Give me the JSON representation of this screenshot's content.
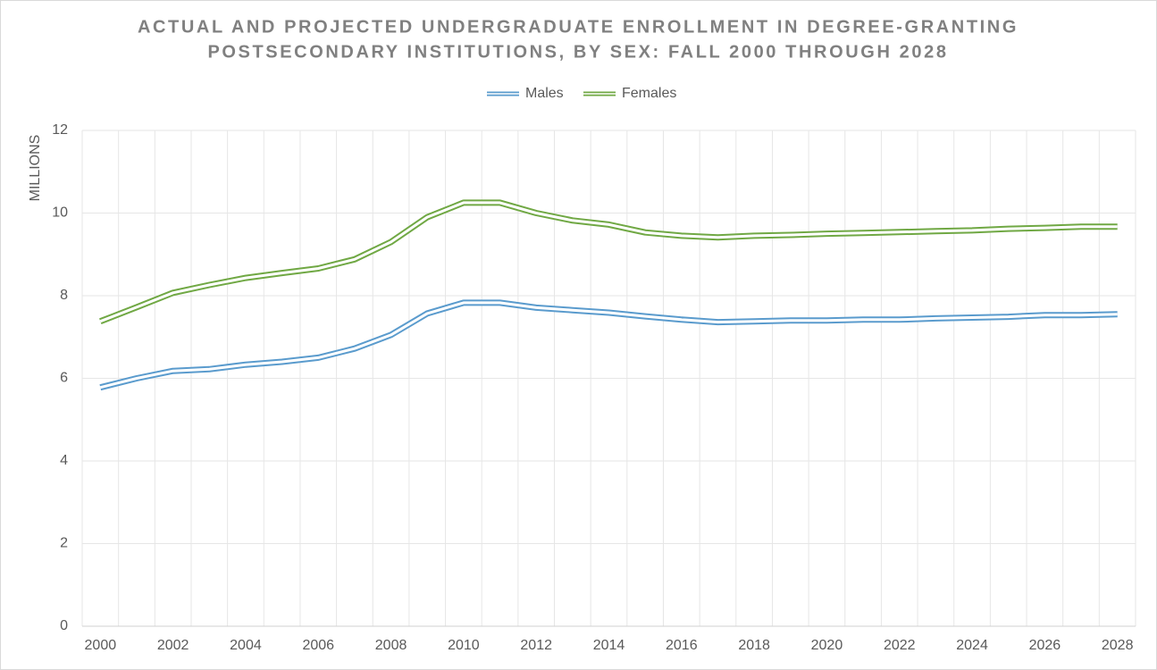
{
  "chart_data": {
    "type": "line",
    "title": [
      "ACTUAL AND PROJECTED UNDERGRADUATE ENROLLMENT IN DEGREE-GRANTING",
      "POSTSECONDARY INSTITUTIONS, BY SEX: FALL 2000 THROUGH 2028"
    ],
    "y_label": "MILLIONS",
    "categories": [
      "2000",
      null,
      "2002",
      null,
      "2004",
      null,
      "2006",
      null,
      "2008",
      null,
      "2010",
      null,
      "2012",
      null,
      "2014",
      null,
      "2016",
      null,
      "2018",
      null,
      "2020",
      null,
      "2022",
      null,
      "2024",
      null,
      "2026",
      null,
      "2028"
    ],
    "series": [
      {
        "name": "Males",
        "color": "#5a9bcd",
        "values": [
          5.78,
          6.0,
          6.18,
          6.22,
          6.33,
          6.4,
          6.5,
          6.72,
          7.05,
          7.57,
          7.83,
          7.83,
          7.71,
          7.65,
          7.59,
          7.5,
          7.42,
          7.36,
          7.38,
          7.4,
          7.4,
          7.42,
          7.42,
          7.45,
          7.47,
          7.49,
          7.53,
          7.53,
          7.55
        ]
      },
      {
        "name": "Females",
        "color": "#70a844",
        "values": [
          7.38,
          7.72,
          8.07,
          8.26,
          8.43,
          8.55,
          8.66,
          8.88,
          9.3,
          9.9,
          10.25,
          10.25,
          10.0,
          9.82,
          9.72,
          9.53,
          9.45,
          9.41,
          9.45,
          9.47,
          9.5,
          9.52,
          9.54,
          9.56,
          9.58,
          9.62,
          9.64,
          9.67,
          9.67
        ]
      }
    ],
    "ylim": [
      0,
      12
    ],
    "yticks": [
      0,
      2,
      4,
      6,
      8,
      10,
      12
    ],
    "grid": true,
    "legend": "top"
  }
}
